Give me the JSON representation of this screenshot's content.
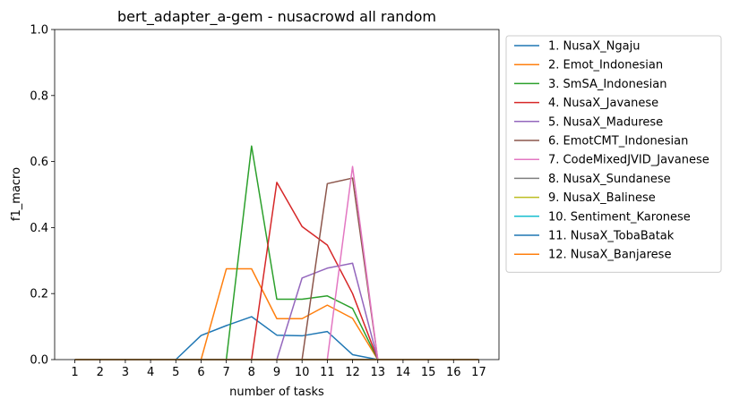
{
  "chart_data": {
    "type": "line",
    "title": "bert_adapter_a-gem - nusacrowd all random",
    "xlabel": "number of tasks",
    "ylabel": "f1_macro",
    "x": [
      1,
      2,
      3,
      4,
      5,
      6,
      7,
      8,
      9,
      10,
      11,
      12,
      13,
      14,
      15,
      16,
      17
    ],
    "xlim": [
      0.2,
      17.8
    ],
    "ylim": [
      0,
      1
    ],
    "yticks": [
      "0.0",
      "0.2",
      "0.4",
      "0.6",
      "0.8",
      "1.0"
    ],
    "xticks": [
      "1",
      "2",
      "3",
      "4",
      "5",
      "6",
      "7",
      "8",
      "9",
      "10",
      "11",
      "12",
      "13",
      "14",
      "15",
      "16",
      "17"
    ],
    "legend_position": "outside-right",
    "grid": false,
    "series": [
      {
        "name": "1. NusaX_Ngaju",
        "color": "#1f77b4",
        "values": [
          0,
          0,
          0,
          0,
          0,
          0.073,
          0.103,
          0.13,
          0.074,
          0.072,
          0.085,
          0.015,
          0,
          0,
          0,
          0,
          0
        ]
      },
      {
        "name": "2. Emot_Indonesian",
        "color": "#ff7f0e",
        "values": [
          0,
          0,
          0,
          0,
          0,
          0,
          0.275,
          0.275,
          0.124,
          0.124,
          0.165,
          0.125,
          0,
          0,
          0,
          0,
          0
        ]
      },
      {
        "name": "3. SmSA_Indonesian",
        "color": "#2ca02c",
        "values": [
          0,
          0,
          0,
          0,
          0,
          0,
          0,
          0.647,
          0.183,
          0.183,
          0.193,
          0.155,
          0,
          0,
          0,
          0,
          0
        ]
      },
      {
        "name": "4. NusaX_Javanese",
        "color": "#d62728",
        "values": [
          0,
          0,
          0,
          0,
          0,
          0,
          0,
          0,
          0.537,
          0.403,
          0.347,
          0.2,
          0,
          0,
          0,
          0,
          0
        ]
      },
      {
        "name": "5. NusaX_Madurese",
        "color": "#9467bd",
        "values": [
          0,
          0,
          0,
          0,
          0,
          0,
          0,
          0,
          0,
          0.247,
          0.277,
          0.292,
          0,
          0,
          0,
          0,
          0
        ]
      },
      {
        "name": "6. EmotCMT_Indonesian",
        "color": "#8c564b",
        "values": [
          0,
          0,
          0,
          0,
          0,
          0,
          0,
          0,
          0,
          0,
          0.533,
          0.55,
          0,
          0,
          0,
          0,
          0
        ]
      },
      {
        "name": "7. CodeMixedJVID_Javanese",
        "color": "#e377c2",
        "values": [
          0,
          0,
          0,
          0,
          0,
          0,
          0,
          0,
          0,
          0,
          0,
          0.585,
          0,
          0,
          0,
          0,
          0
        ]
      },
      {
        "name": "8. NusaX_Sundanese",
        "color": "#7f7f7f",
        "values": [
          0,
          0,
          0,
          0,
          0,
          0,
          0,
          0,
          0,
          0,
          0,
          0,
          0,
          0,
          0,
          0,
          0
        ]
      },
      {
        "name": "9. NusaX_Balinese",
        "color": "#bcbd22",
        "values": [
          0,
          0,
          0,
          0,
          0,
          0,
          0,
          0,
          0,
          0,
          0,
          0,
          0,
          0,
          0,
          0,
          0
        ]
      },
      {
        "name": "10. Sentiment_Karonese",
        "color": "#17becf",
        "values": [
          0,
          0,
          0,
          0,
          0,
          0,
          0,
          0,
          0,
          0,
          0,
          0,
          0,
          0,
          0,
          0,
          0
        ]
      },
      {
        "name": "11. NusaX_TobaBatak",
        "color": "#1f77b4",
        "values": [
          0,
          0,
          0,
          0,
          0,
          0,
          0,
          0,
          0,
          0,
          0,
          0,
          0,
          0,
          0,
          0,
          0
        ]
      },
      {
        "name": "12. NusaX_Banjarese",
        "color": "#ff7f0e",
        "values": [
          0,
          0,
          0,
          0,
          0,
          0,
          0,
          0,
          0,
          0,
          0,
          0,
          0,
          0,
          0,
          0,
          0
        ]
      }
    ]
  }
}
